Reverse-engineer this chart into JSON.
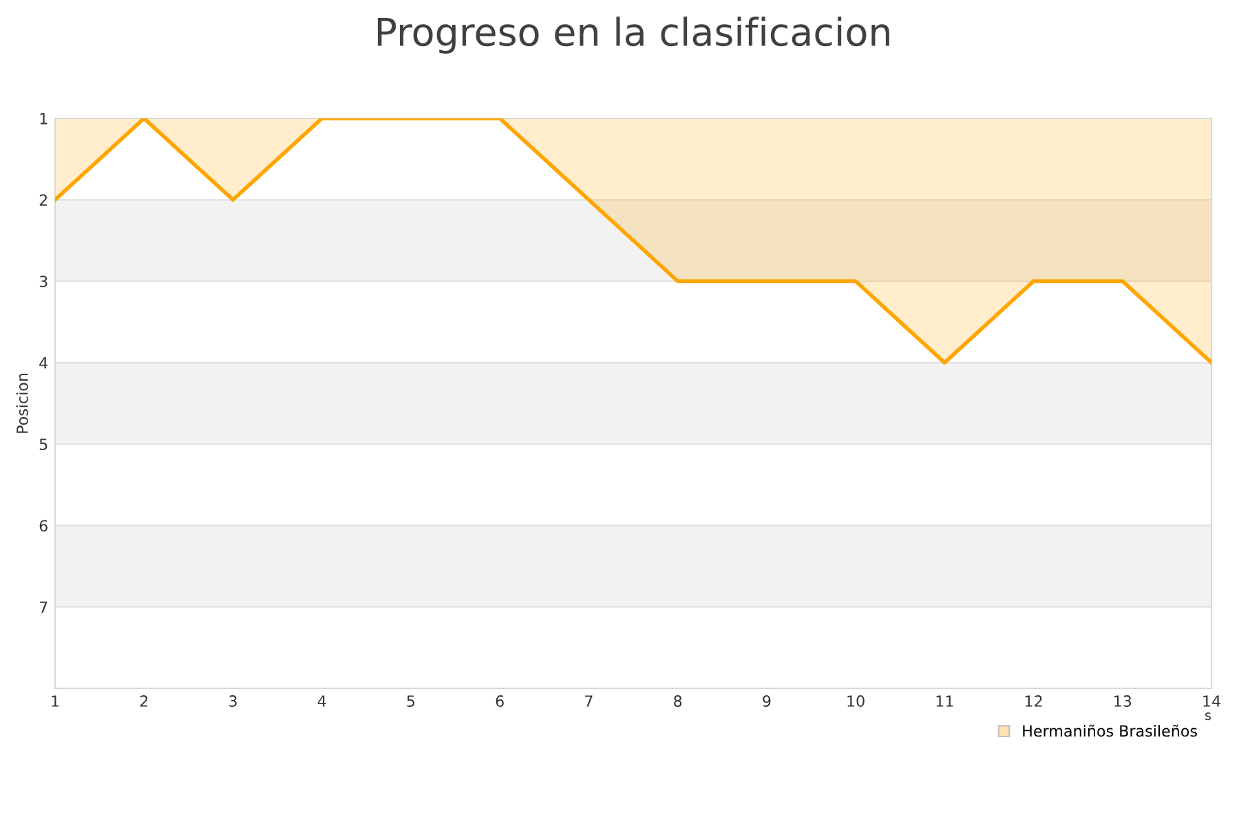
{
  "chart_data": {
    "type": "area",
    "title": "Progreso en la clasificacion",
    "ylabel": "Posicion",
    "xlabel": "s",
    "x": [
      1,
      2,
      3,
      4,
      5,
      6,
      7,
      8,
      9,
      10,
      11,
      12,
      13,
      14
    ],
    "series": [
      {
        "name": "Hermaniños Brasileños",
        "color": "#ffa500",
        "values": [
          2,
          1,
          2,
          1,
          1,
          1,
          2,
          3,
          3,
          3,
          4,
          3,
          3,
          4
        ]
      }
    ],
    "xlim": [
      1,
      14
    ],
    "xticks": [
      1,
      2,
      3,
      4,
      5,
      6,
      7,
      8,
      9,
      10,
      11,
      12,
      13,
      14
    ],
    "ylim": [
      8,
      1
    ],
    "yticks": [
      1,
      2,
      3,
      4,
      5,
      6,
      7
    ],
    "bands": [
      {
        "axis": "y",
        "from": 2,
        "to": 3,
        "color": "#f2f2f2"
      },
      {
        "axis": "y",
        "from": 4,
        "to": 5,
        "color": "#f2f2f2"
      },
      {
        "axis": "y",
        "from": 6,
        "to": 7,
        "color": "#f2f2f2"
      }
    ],
    "grid": "y",
    "legend": "bottom right"
  }
}
